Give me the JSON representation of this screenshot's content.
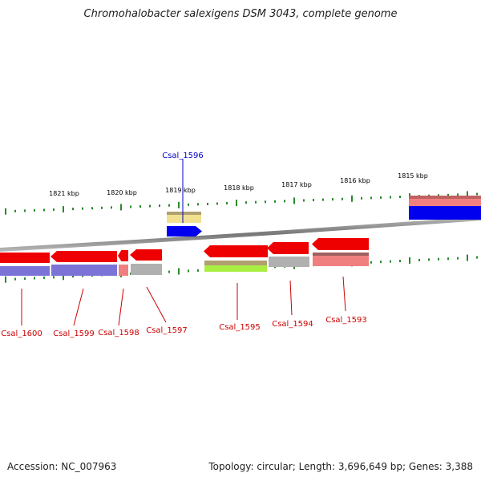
{
  "title": "Chromohalobacter salexigens DSM 3043, complete genome",
  "footer": {
    "accession": "Accession: NC_007963",
    "stats": "Topology: circular; Length: 3,696,649 bp; Genes: 3,388"
  },
  "colors": {
    "forward_gene": "#0000ee",
    "reverse_gene": "#ee0000",
    "forward_label": "#0000cc",
    "reverse_label": "#cc0000",
    "backbone": "#888888",
    "tick": "#2a8a2a",
    "cds_pink": "#f08080",
    "cds_purple": "#7b74d6",
    "cds_gray": "#b0b0b0",
    "cds_yellow": "#f0e090",
    "cds_olive": "#b0a070",
    "cds_lime": "#aaee44"
  },
  "scale_labels": [
    "1821 kbp",
    "1820 kbp",
    "1819 kbp",
    "1818 kbp",
    "1817 kbp",
    "1816 kbp",
    "1815 kbp"
  ],
  "genes": [
    {
      "id": "Csal_1596",
      "strand": "forward"
    },
    {
      "id": "Csal_1600",
      "strand": "reverse"
    },
    {
      "id": "Csal_1599",
      "strand": "reverse"
    },
    {
      "id": "Csal_1598",
      "strand": "reverse"
    },
    {
      "id": "Csal_1597",
      "strand": "reverse"
    },
    {
      "id": "Csal_1595",
      "strand": "reverse"
    },
    {
      "id": "Csal_1594",
      "strand": "reverse"
    },
    {
      "id": "Csal_1593",
      "strand": "reverse"
    }
  ]
}
